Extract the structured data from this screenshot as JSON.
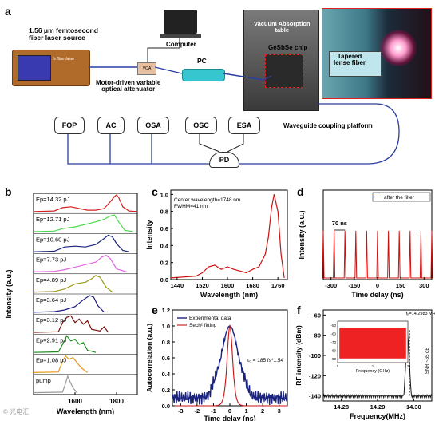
{
  "panel_a": {
    "letter": "a",
    "laser_label": "1.56 μm femtosecond\nfiber laser source",
    "laser_screen_text": "fs fiber laser",
    "computer_label": "Computer",
    "attenuator_label": "Motor-driven variable\noptical attenuator",
    "voa_text": "VOA",
    "pc_label": "PC",
    "chip_label": "GeSbSe chip",
    "table_label": "Vacuum Absorption\ntable",
    "fiber_label": "Tapered\nlense fiber",
    "platform_label": "Waveguide coupling platform",
    "instruments": [
      "FOP",
      "AC",
      "OSA",
      "OSC",
      "ESA"
    ],
    "pd_label": "PD"
  },
  "colors": {
    "fiber": "#2a3fa0",
    "red": "#cc1111",
    "blue": "#1a237e",
    "fill_red": "#ee2222"
  },
  "panel_b": {
    "letter": "b",
    "ylabel": "Intensity (a.u.)",
    "xlabel": "Wavelength (nm)",
    "xticks": [
      "1600",
      "1800"
    ]
  },
  "panel_c": {
    "letter": "c",
    "ylabel": "Intensity",
    "xlabel": "Wavelength (nm)",
    "annot1": "Center wavelength=1748 nm",
    "annot2": "FWHM=41 nm",
    "yticks": [
      "0.0",
      "0.2",
      "0.4",
      "0.6",
      "0.8",
      "1.0"
    ],
    "xticks": [
      "1440",
      "1520",
      "1600",
      "1680",
      "1760"
    ]
  },
  "panel_d": {
    "letter": "d",
    "ylabel": "Intensity (a.u.)",
    "xlabel": "Time delay (ns)",
    "legend": "after the filter",
    "annot": "70 ns",
    "xticks": [
      "-300",
      "-150",
      "0",
      "150",
      "300"
    ]
  },
  "panel_e": {
    "letter": "e",
    "ylabel": "Autocorrelation (a.u.)",
    "xlabel": "Time delay (ns)",
    "legend1": "Experimental data",
    "legend2": "Sech² fitting",
    "annot": "τ₀ = 185 fs*1.54",
    "yticks": [
      "0.0",
      "0.2",
      "0.4",
      "0.6",
      "0.8",
      "1.0",
      "1.2"
    ],
    "xticks": [
      "-3",
      "-2",
      "-1",
      "0",
      "1",
      "2",
      "3"
    ]
  },
  "panel_f": {
    "letter": "f",
    "ylabel": "RF intensity (dBm)",
    "xlabel": "Frequency(MHz)",
    "annot_freq": "fₚ=14.2983 MHz",
    "annot_snr": "SNR ~65 dB",
    "yticks": [
      "-60",
      "-80",
      "-100",
      "-120",
      "-140"
    ],
    "xticks": [
      "14.28",
      "14.29",
      "14.30"
    ],
    "inset_xlabel": "Frequency (GHz)",
    "inset_xticks": [
      "0",
      "1",
      "2"
    ],
    "inset_yticks": [
      "-50",
      "-60",
      "-70",
      "-80",
      "-90"
    ]
  },
  "watermark": "© 光电汇",
  "chart_data": [
    {
      "panel": "b",
      "type": "line",
      "series": [
        {
          "name": "Ep=14.32 pJ",
          "color": "#d62020",
          "x": [
            1400,
            1500,
            1540,
            1580,
            1620,
            1660,
            1700,
            1740,
            1770,
            1790,
            1800,
            1810,
            1830,
            1860,
            1900
          ],
          "y": [
            0.02,
            0.05,
            0.25,
            0.3,
            0.2,
            0.1,
            0.1,
            0.2,
            0.6,
            0.9,
            1.0,
            0.85,
            0.3,
            0.05,
            0.02
          ]
        },
        {
          "name": "Ep=12.71 pJ",
          "color": "#4cd94c",
          "x": [
            1400,
            1500,
            1540,
            1600,
            1650,
            1700,
            1740,
            1770,
            1790,
            1810,
            1840,
            1880
          ],
          "y": [
            0.02,
            0.05,
            0.2,
            0.3,
            0.45,
            0.6,
            0.75,
            0.95,
            1.0,
            0.6,
            0.1,
            0.02
          ]
        },
        {
          "name": "Ep=10.60 pJ",
          "color": "#1a237e",
          "x": [
            1400,
            1500,
            1550,
            1600,
            1650,
            1700,
            1740,
            1760,
            1780,
            1800,
            1830,
            1860
          ],
          "y": [
            0.02,
            0.05,
            0.3,
            0.35,
            0.3,
            0.45,
            0.8,
            1.0,
            0.9,
            0.5,
            0.1,
            0.02
          ]
        },
        {
          "name": "Ep=7.73 pJ",
          "color": "#e066e0",
          "x": [
            1400,
            1500,
            1550,
            1600,
            1650,
            1700,
            1730,
            1750,
            1770,
            1800,
            1850
          ],
          "y": [
            0.02,
            0.05,
            0.15,
            0.3,
            0.45,
            0.6,
            0.9,
            1.0,
            0.8,
            0.2,
            0.02
          ]
        },
        {
          "name": "Ep=4.89 pJ",
          "color": "#9a9a1a",
          "x": [
            1400,
            1500,
            1550,
            1600,
            1650,
            1680,
            1700,
            1720,
            1750,
            1780
          ],
          "y": [
            0.02,
            0.05,
            0.2,
            0.5,
            0.6,
            0.8,
            1.0,
            0.9,
            0.3,
            0.02
          ]
        },
        {
          "name": "Ep=3.64 pJ",
          "color": "#1a1a7e",
          "x": [
            1400,
            1500,
            1550,
            1600,
            1640,
            1670,
            1690,
            1710,
            1740
          ],
          "y": [
            0.02,
            0.05,
            0.15,
            0.35,
            0.75,
            1.0,
            0.9,
            0.4,
            0.02
          ]
        },
        {
          "name": "Ep=3.12 pJ",
          "color": "#7a1010",
          "x": [
            1400,
            1520,
            1540,
            1560,
            1580,
            1600,
            1620,
            1640,
            1660,
            1680,
            1720,
            1740,
            1760
          ],
          "y": [
            0.02,
            0.05,
            0.6,
            0.9,
            1.0,
            0.6,
            0.8,
            0.5,
            0.7,
            0.2,
            0.1,
            0.35,
            0.02
          ]
        },
        {
          "name": "Ep=2.91 pJ",
          "color": "#1e8c1e",
          "x": [
            1400,
            1520,
            1540,
            1560,
            1580,
            1600,
            1620,
            1640,
            1660,
            1700
          ],
          "y": [
            0.02,
            0.05,
            0.5,
            1.0,
            0.7,
            0.8,
            0.5,
            0.6,
            0.15,
            0.02
          ]
        },
        {
          "name": "Ep=1.08 pJ",
          "color": "#e69a1a",
          "x": [
            1400,
            1520,
            1540,
            1555,
            1570,
            1590,
            1610,
            1630,
            1660
          ],
          "y": [
            0.02,
            0.05,
            0.7,
            1.0,
            0.8,
            0.9,
            0.6,
            0.3,
            0.02
          ]
        },
        {
          "name": "pump",
          "color": "#9a9a9a",
          "x": [
            1400,
            1540,
            1555,
            1565,
            1575,
            1590,
            1610
          ],
          "y": [
            0.02,
            0.05,
            0.6,
            1.0,
            0.7,
            0.3,
            0.02
          ]
        }
      ],
      "xlim": [
        1400,
        1900
      ]
    },
    {
      "panel": "c",
      "type": "line",
      "x": [
        1420,
        1500,
        1520,
        1540,
        1560,
        1580,
        1600,
        1620,
        1640,
        1660,
        1680,
        1700,
        1720,
        1730,
        1740,
        1748,
        1760,
        1770,
        1780
      ],
      "y": [
        0.02,
        0.04,
        0.08,
        0.15,
        0.17,
        0.12,
        0.15,
        0.12,
        0.1,
        0.08,
        0.12,
        0.15,
        0.3,
        0.5,
        0.85,
        1.0,
        0.8,
        0.3,
        0.02
      ],
      "xlim": [
        1420,
        1790
      ],
      "ylim": [
        0,
        1.05
      ]
    },
    {
      "panel": "d",
      "type": "line",
      "pulse_period_ns": 70,
      "pulse_count": 11,
      "xlim": [
        -350,
        350
      ],
      "ylim": [
        0,
        1.1
      ]
    },
    {
      "panel": "e",
      "type": "line",
      "series": [
        {
          "name": "Experimental data",
          "color": "#1a237e"
        },
        {
          "name": "Sech² fitting",
          "color": "#cc1111"
        }
      ],
      "peak": 1.0,
      "background": 0.1,
      "xlim": [
        -3.5,
        3.5
      ],
      "ylim": [
        0,
        1.2
      ]
    },
    {
      "panel": "f",
      "type": "line",
      "peak_freq_mhz": 14.2983,
      "peak_dbm": -75,
      "noise_floor_dbm": -140,
      "xlim": [
        14.275,
        14.305
      ],
      "ylim": [
        -145,
        -55
      ],
      "inset": {
        "type": "area",
        "level_dbm": -53,
        "floor_dbm": -90,
        "xlim": [
          0,
          2
        ]
      }
    }
  ]
}
